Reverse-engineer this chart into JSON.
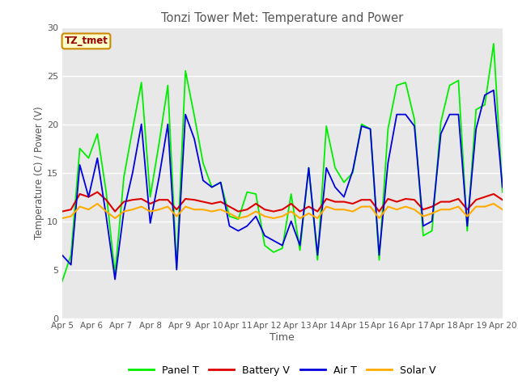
{
  "title": "Tonzi Tower Met: Temperature and Power",
  "xlabel": "Time",
  "ylabel": "Temperature (C) / Power (V)",
  "ylim": [
    0,
    30
  ],
  "yticks": [
    0,
    5,
    10,
    15,
    20,
    25,
    30
  ],
  "fig_bg_color": "#ffffff",
  "plot_bg_color": "#e8e8e8",
  "annotation_text": "TZ_tmet",
  "annotation_bg": "#ffffcc",
  "annotation_border": "#cc8800",
  "legend_entries": [
    "Panel T",
    "Battery V",
    "Air T",
    "Solar V"
  ],
  "legend_colors": [
    "#00ee00",
    "#dd0000",
    "#0000dd",
    "#ffaa00"
  ],
  "xtick_labels": [
    "Apr 5",
    "Apr 6",
    "Apr 7",
    "Apr 8",
    "Apr 9",
    "Apr 10",
    "Apr 11",
    "Apr 12",
    "Apr 13",
    "Apr 14",
    "Apr 15",
    "Apr 16",
    "Apr 17",
    "Apr 18",
    "Apr 19",
    "Apr 20"
  ],
  "panel_t": [
    3.8,
    6.5,
    17.5,
    16.5,
    19.0,
    13.0,
    4.5,
    14.5,
    19.5,
    24.3,
    12.5,
    18.0,
    24.0,
    5.2,
    25.5,
    20.9,
    16.0,
    13.5,
    14.0,
    10.5,
    10.2,
    13.0,
    12.8,
    7.5,
    6.8,
    7.2,
    12.8,
    7.0,
    15.5,
    6.0,
    19.8,
    15.5,
    14.0,
    15.0,
    20.0,
    19.5,
    6.0,
    19.5,
    24.0,
    24.3,
    20.5,
    8.5,
    9.0,
    20.2,
    24.0,
    24.5,
    9.0,
    21.5,
    22.0,
    28.3,
    13.0
  ],
  "battery_v": [
    11.0,
    11.2,
    12.8,
    12.5,
    13.0,
    12.2,
    11.0,
    12.0,
    12.2,
    12.3,
    11.8,
    12.2,
    12.2,
    11.2,
    12.3,
    12.2,
    12.0,
    11.8,
    12.0,
    11.5,
    11.0,
    11.2,
    11.8,
    11.2,
    11.0,
    11.2,
    11.8,
    11.0,
    11.5,
    11.0,
    12.3,
    12.0,
    12.0,
    11.8,
    12.2,
    12.2,
    11.0,
    12.3,
    12.0,
    12.3,
    12.2,
    11.2,
    11.5,
    12.0,
    12.0,
    12.3,
    11.2,
    12.2,
    12.5,
    12.8,
    12.2
  ],
  "air_t": [
    6.5,
    5.5,
    15.8,
    12.5,
    16.5,
    10.5,
    4.0,
    11.0,
    15.0,
    20.0,
    9.8,
    14.5,
    20.0,
    5.0,
    21.0,
    18.5,
    14.2,
    13.5,
    14.0,
    9.5,
    9.0,
    9.5,
    10.5,
    8.5,
    8.0,
    7.5,
    10.0,
    7.5,
    15.5,
    6.5,
    15.5,
    13.5,
    12.5,
    15.2,
    19.8,
    19.5,
    6.5,
    16.0,
    21.0,
    21.0,
    19.8,
    9.5,
    10.0,
    19.0,
    21.0,
    21.0,
    9.5,
    19.5,
    23.0,
    23.5,
    13.5
  ],
  "solar_v": [
    10.3,
    10.5,
    11.5,
    11.2,
    11.8,
    11.0,
    10.3,
    11.0,
    11.2,
    11.5,
    11.0,
    11.2,
    11.5,
    10.5,
    11.5,
    11.2,
    11.2,
    11.0,
    11.2,
    10.8,
    10.3,
    10.5,
    11.0,
    10.5,
    10.3,
    10.5,
    11.0,
    10.3,
    10.8,
    10.3,
    11.5,
    11.2,
    11.2,
    11.0,
    11.5,
    11.5,
    10.3,
    11.5,
    11.2,
    11.5,
    11.2,
    10.5,
    10.8,
    11.2,
    11.2,
    11.5,
    10.5,
    11.5,
    11.5,
    11.8,
    11.2
  ]
}
